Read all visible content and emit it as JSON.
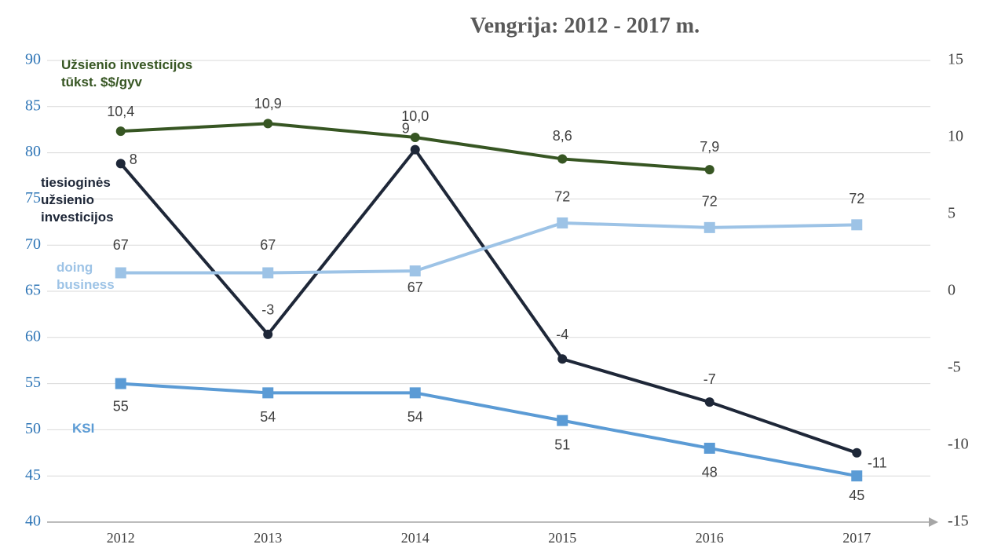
{
  "chart_data": {
    "type": "line",
    "title": "Vengrija: 2012 - 2017 m.",
    "categories": [
      "2012",
      "2013",
      "2014",
      "2015",
      "2016",
      "2017"
    ],
    "ylim": [
      40,
      90
    ],
    "yticks": [
      40,
      45,
      50,
      55,
      60,
      65,
      70,
      75,
      80,
      85,
      90
    ],
    "y2lim": [
      -15,
      15
    ],
    "y2ticks": [
      -15,
      -10,
      -5,
      0,
      5,
      10,
      15
    ],
    "grid": true,
    "series": [
      {
        "name": "Užsienio investicijos tūkst. $$/gyv",
        "color": "#375623",
        "axis": "y2",
        "marker": "circle",
        "values": [
          10.4,
          10.9,
          10.0,
          8.6,
          7.9,
          null
        ],
        "value_labels": [
          "10,4",
          "10,9",
          "10,0",
          "8,6",
          "7,9",
          null
        ]
      },
      {
        "name": "tiesioginės užsienio investicijos",
        "color": "#1e2738",
        "axis": "y2",
        "marker": "circle",
        "values": [
          8.3,
          -2.8,
          9.2,
          -4.4,
          -7.2,
          -10.5
        ],
        "value_labels": [
          "8",
          "-3",
          "9",
          "-4",
          "-7",
          "-11"
        ]
      },
      {
        "name": "doing business",
        "color": "#9dc3e6",
        "marker": "square",
        "values": [
          67,
          67,
          67.2,
          72.4,
          71.9,
          72.2
        ],
        "value_labels": [
          "67",
          "67",
          "67",
          "72",
          "72",
          "72"
        ]
      },
      {
        "name": "KSI",
        "color": "#5b9bd5",
        "marker": "square",
        "values": [
          55,
          54,
          54,
          51,
          48,
          45
        ],
        "value_labels": [
          "55",
          "54",
          "54",
          "51",
          "48",
          "45"
        ]
      }
    ]
  }
}
